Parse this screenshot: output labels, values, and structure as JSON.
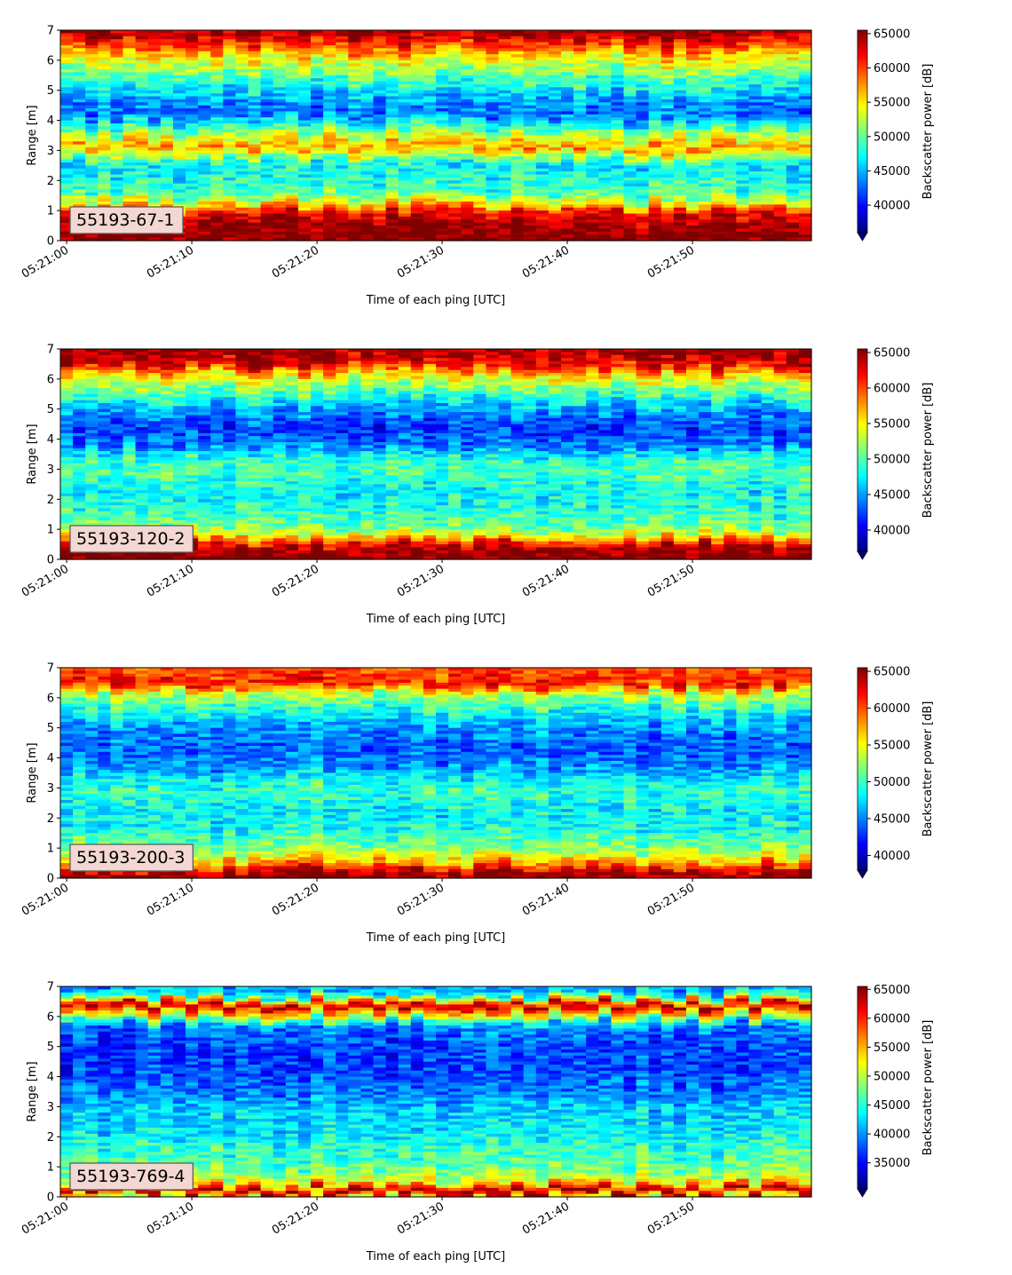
{
  "figure": {
    "colormap": "jet",
    "colors": {
      "colormap_stops": [
        "#00007f",
        "#0000ff",
        "#007fff",
        "#00ffff",
        "#7fff7f",
        "#ffff00",
        "#ff7f00",
        "#ff0000",
        "#7f0000"
      ],
      "label_box_fill": "#f3d7d3",
      "label_box_edge": "#555555"
    }
  },
  "chart_data": [
    {
      "type": "heatmap",
      "label": "55193-67-1",
      "xlabel": "Time of each ping [UTC]",
      "ylabel": "Range [m]",
      "colorbar_label": "Backscatter power [dB]",
      "x_ticks": [
        "05:21:00",
        "05:21:10",
        "05:21:20",
        "05:21:30",
        "05:21:40",
        "05:21:50"
      ],
      "x_range_seconds": [
        -0.5,
        59.5
      ],
      "y_ticks": [
        0,
        1,
        2,
        3,
        4,
        5,
        6,
        7
      ],
      "ylim": [
        0,
        7
      ],
      "colorbar_ticks": [
        40000,
        45000,
        50000,
        55000,
        60000,
        65000
      ],
      "clim": [
        36000,
        65500
      ],
      "colorbar_extend": "min",
      "range_profile": [
        {
          "range_m": 0.1,
          "value": 65500
        },
        {
          "range_m": 0.5,
          "value": 65000
        },
        {
          "range_m": 0.9,
          "value": 62000
        },
        {
          "range_m": 1.2,
          "value": 55000
        },
        {
          "range_m": 1.6,
          "value": 49000
        },
        {
          "range_m": 2.0,
          "value": 48000
        },
        {
          "range_m": 2.5,
          "value": 46500
        },
        {
          "range_m": 3.1,
          "value": 57500
        },
        {
          "range_m": 3.6,
          "value": 51000
        },
        {
          "range_m": 4.2,
          "value": 42500
        },
        {
          "range_m": 4.8,
          "value": 45000
        },
        {
          "range_m": 5.4,
          "value": 49500
        },
        {
          "range_m": 6.0,
          "value": 54000
        },
        {
          "range_m": 6.5,
          "value": 60000
        },
        {
          "range_m": 6.9,
          "value": 64500
        }
      ]
    },
    {
      "type": "heatmap",
      "label": "55193-120-2",
      "xlabel": "Time of each ping [UTC]",
      "ylabel": "Range [m]",
      "colorbar_label": "Backscatter power [dB]",
      "x_ticks": [
        "05:21:00",
        "05:21:10",
        "05:21:20",
        "05:21:30",
        "05:21:40",
        "05:21:50"
      ],
      "x_range_seconds": [
        -0.5,
        59.5
      ],
      "y_ticks": [
        0,
        1,
        2,
        3,
        4,
        5,
        6,
        7
      ],
      "ylim": [
        0,
        7
      ],
      "colorbar_ticks": [
        40000,
        45000,
        50000,
        55000,
        60000,
        65000
      ],
      "clim": [
        37000,
        65500
      ],
      "colorbar_extend": "min",
      "range_profile": [
        {
          "range_m": 0.1,
          "value": 65500
        },
        {
          "range_m": 0.4,
          "value": 64500
        },
        {
          "range_m": 0.7,
          "value": 57000
        },
        {
          "range_m": 1.0,
          "value": 51000
        },
        {
          "range_m": 1.6,
          "value": 49000
        },
        {
          "range_m": 2.2,
          "value": 47500
        },
        {
          "range_m": 2.9,
          "value": 50000
        },
        {
          "range_m": 3.3,
          "value": 49000
        },
        {
          "range_m": 3.8,
          "value": 44000
        },
        {
          "range_m": 4.4,
          "value": 42000
        },
        {
          "range_m": 5.0,
          "value": 45000
        },
        {
          "range_m": 5.6,
          "value": 50500
        },
        {
          "range_m": 6.1,
          "value": 55000
        },
        {
          "range_m": 6.5,
          "value": 62500
        },
        {
          "range_m": 6.9,
          "value": 64500
        }
      ]
    },
    {
      "type": "heatmap",
      "label": "55193-200-3",
      "xlabel": "Time of each ping [UTC]",
      "ylabel": "Range [m]",
      "colorbar_label": "Backscatter power [dB]",
      "x_ticks": [
        "05:21:00",
        "05:21:10",
        "05:21:20",
        "05:21:30",
        "05:21:40",
        "05:21:50"
      ],
      "x_range_seconds": [
        -0.5,
        59.5
      ],
      "y_ticks": [
        0,
        1,
        2,
        3,
        4,
        5,
        6,
        7
      ],
      "ylim": [
        0,
        7
      ],
      "colorbar_ticks": [
        40000,
        45000,
        50000,
        55000,
        60000,
        65000
      ],
      "clim": [
        38000,
        65500
      ],
      "colorbar_extend": "min",
      "range_profile": [
        {
          "range_m": 0.1,
          "value": 65500
        },
        {
          "range_m": 0.35,
          "value": 61000
        },
        {
          "range_m": 0.7,
          "value": 55000
        },
        {
          "range_m": 1.0,
          "value": 52000
        },
        {
          "range_m": 1.6,
          "value": 49000
        },
        {
          "range_m": 2.2,
          "value": 48000
        },
        {
          "range_m": 2.9,
          "value": 50000
        },
        {
          "range_m": 3.3,
          "value": 48000
        },
        {
          "range_m": 3.8,
          "value": 45000
        },
        {
          "range_m": 4.4,
          "value": 44000
        },
        {
          "range_m": 5.0,
          "value": 45500
        },
        {
          "range_m": 5.6,
          "value": 49000
        },
        {
          "range_m": 6.1,
          "value": 53000
        },
        {
          "range_m": 6.5,
          "value": 62000
        },
        {
          "range_m": 6.9,
          "value": 60000
        }
      ]
    },
    {
      "type": "heatmap",
      "label": "55193-769-4",
      "xlabel": "Time of each ping [UTC]",
      "ylabel": "Range [m]",
      "colorbar_label": "Backscatter power [dB]",
      "x_ticks": [
        "05:21:00",
        "05:21:10",
        "05:21:20",
        "05:21:30",
        "05:21:40",
        "05:21:50"
      ],
      "x_range_seconds": [
        -0.5,
        59.5
      ],
      "y_ticks": [
        0,
        1,
        2,
        3,
        4,
        5,
        6,
        7
      ],
      "ylim": [
        0,
        7
      ],
      "colorbar_ticks": [
        35000,
        40000,
        45000,
        50000,
        55000,
        60000,
        65000
      ],
      "clim": [
        30500,
        65500
      ],
      "colorbar_extend": "min",
      "range_profile": [
        {
          "range_m": 0.05,
          "value": 52000
        },
        {
          "range_m": 0.2,
          "value": 65500
        },
        {
          "range_m": 0.5,
          "value": 52000
        },
        {
          "range_m": 1.0,
          "value": 47000
        },
        {
          "range_m": 1.6,
          "value": 45000
        },
        {
          "range_m": 2.2,
          "value": 43000
        },
        {
          "range_m": 2.9,
          "value": 42000
        },
        {
          "range_m": 3.5,
          "value": 39000
        },
        {
          "range_m": 4.2,
          "value": 37000
        },
        {
          "range_m": 5.0,
          "value": 37000
        },
        {
          "range_m": 5.7,
          "value": 39000
        },
        {
          "range_m": 6.15,
          "value": 55000
        },
        {
          "range_m": 6.4,
          "value": 64000
        },
        {
          "range_m": 6.7,
          "value": 45000
        },
        {
          "range_m": 6.95,
          "value": 40000
        }
      ]
    }
  ]
}
